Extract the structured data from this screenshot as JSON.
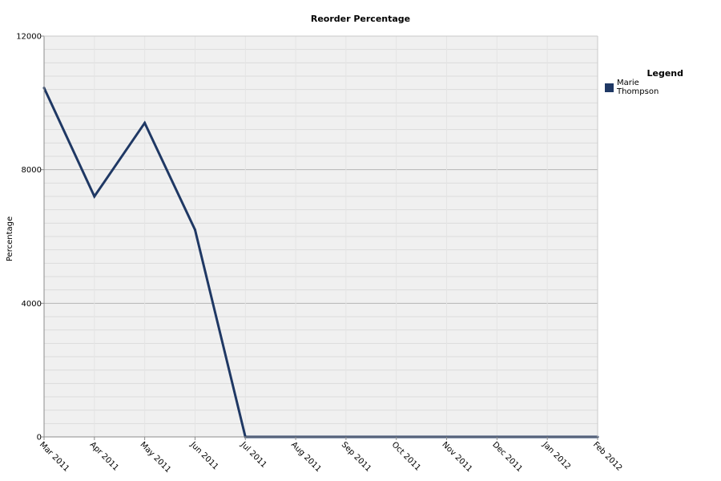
{
  "chart_data": {
    "type": "line",
    "title": "Reorder Percentage",
    "xlabel": "",
    "ylabel": "Percentage",
    "legend_title": "Legend",
    "legend_position": "right",
    "categories": [
      "Mar 2011",
      "Apr 2011",
      "May 2011",
      "Jun 2011",
      "Jul 2011",
      "Aug 2011",
      "Sep 2011",
      "Oct 2011",
      "Nov 2011",
      "Dec 2011",
      "Jan 2012",
      "Feb 2012"
    ],
    "series": [
      {
        "name": "Marie Thompson",
        "color": "#1f3864",
        "values": [
          10450,
          7200,
          9400,
          6200,
          0,
          0,
          0,
          0,
          0,
          0,
          0,
          0
        ]
      }
    ],
    "ylim": [
      0,
      12000
    ],
    "yticks": [
      0,
      4000,
      8000,
      12000
    ],
    "grid": true,
    "background": "#f0f0f0"
  }
}
